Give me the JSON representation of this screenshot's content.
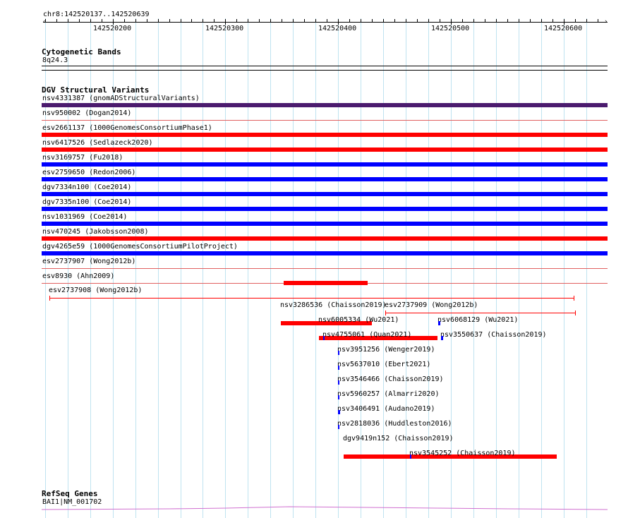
{
  "locus": "chr8:142520137..142520639",
  "region": {
    "start": 142520137,
    "end": 142520639
  },
  "ruler_ticks": [
    {
      "label": "142520200",
      "pos": 142520200
    },
    {
      "label": "142520300",
      "pos": 142520300
    },
    {
      "label": "142520400",
      "pos": 142520400
    },
    {
      "label": "142520500",
      "pos": 142520500
    },
    {
      "label": "142520600",
      "pos": 142520600
    }
  ],
  "colors": {
    "loss": "#ff0000",
    "gain": "#0000ff",
    "complex": "#4b1b6e",
    "thin_loss": "#e06060",
    "gene": "#d070d0",
    "grid": "#bfe3f0"
  },
  "tracks": {
    "cytoband": {
      "title": "Cytogenetic Bands",
      "band": "8q24.3"
    },
    "dgv": {
      "title": "DGV Structural Variants",
      "full_rows": [
        {
          "label": "nsv4331387 (gnomADStructuralVariants)",
          "color": "complex",
          "thick": true
        },
        {
          "label": "nsv950002 (Dogan2014)",
          "color": "thin_loss",
          "thick": false
        },
        {
          "label": "esv2661137 (1000GenomesConsortiumPhase1)",
          "color": "loss",
          "thick": true
        },
        {
          "label": "nsv6417526 (Sedlazeck2020)",
          "color": "loss",
          "thick": true
        },
        {
          "label": "nsv3169757 (Fu2018)",
          "color": "gain",
          "thick": true
        },
        {
          "label": "esv2759650 (Redon2006)",
          "color": "gain",
          "thick": true
        },
        {
          "label": "dgv7334n100 (Coe2014)",
          "color": "gain",
          "thick": true
        },
        {
          "label": "dgv7335n100 (Coe2014)",
          "color": "gain",
          "thick": true
        },
        {
          "label": "nsv1031969 (Coe2014)",
          "color": "gain",
          "thick": true
        },
        {
          "label": "nsv470245 (Jakobsson2008)",
          "color": "loss",
          "thick": true
        },
        {
          "label": "dgv4265e59 (1000GenomesConsortiumPilotProject)",
          "color": "gain",
          "thick": true
        },
        {
          "label": "esv2737907 (Wong2012b)",
          "color": "thin_loss",
          "thick": false
        },
        {
          "label": "esv8930 (Ahn2009)",
          "color": "thin_loss",
          "thick": false
        }
      ],
      "ahn_feature": {
        "start": 142520352,
        "end": 142520426
      },
      "partial_features": [
        {
          "label": "esv2737908 (Wong2012b)",
          "start": 142520144,
          "end": 142520609,
          "color": "loss",
          "style": "thin",
          "row": 0
        },
        {
          "label": "nsv3286536 (Chaisson2019)",
          "start": 142520349,
          "end": 142520430,
          "color": "loss",
          "style": "thick",
          "row": 1
        },
        {
          "label": "esv2737909 (Wong2012b)",
          "start": 142520442,
          "end": 142520610,
          "color": "loss",
          "style": "thin",
          "row": 1
        },
        {
          "label": "nsv6005334 (Wu2021)",
          "start": 142520383,
          "end": 142520488,
          "color": "loss",
          "style": "thick",
          "row": 2
        },
        {
          "label": "nsv6068129 (Wu2021)",
          "start": 142520489,
          "end": 142520491,
          "color": "gain",
          "style": "tick",
          "row": 2
        },
        {
          "label": "nsv4755061 (Quan2021)",
          "start": 142520387,
          "end": 142520388,
          "color": "gain",
          "style": "tick",
          "row": 3
        },
        {
          "label": "nsv3550637 (Chaisson2019)",
          "start": 142520491,
          "end": 142520493,
          "color": "gain",
          "style": "tick",
          "row": 3
        },
        {
          "label": "nsv3951256 (Wenger2019)",
          "start": 142520400,
          "end": 142520401,
          "color": "gain",
          "style": "tick",
          "row": 4
        },
        {
          "label": "nsv5637010 (Ebert2021)",
          "start": 142520400,
          "end": 142520401,
          "color": "gain",
          "style": "tick",
          "row": 5
        },
        {
          "label": "nsv3546466 (Chaisson2019)",
          "start": 142520400,
          "end": 142520401,
          "color": "gain",
          "style": "tick",
          "row": 6
        },
        {
          "label": "nsv5960257 (Almarri2020)",
          "start": 142520400,
          "end": 142520401,
          "color": "gain",
          "style": "tick",
          "row": 7
        },
        {
          "label": "nsv3406491 (Audano2019)",
          "start": 142520400,
          "end": 142520402,
          "color": "gain",
          "style": "tick",
          "row": 8
        },
        {
          "label": "nsv2818036 (Huddleston2016)",
          "start": 142520400,
          "end": 142520401,
          "color": "gain",
          "style": "tick",
          "row": 9
        },
        {
          "label": "dgv9419n152 (Chaisson2019)",
          "start": 142520405,
          "end": 142520594,
          "color": "loss",
          "style": "thick",
          "row": 10
        },
        {
          "label": "nsv3545252 (Chaisson2019)",
          "start": 142520464,
          "end": 142520465,
          "color": "gain",
          "style": "tick",
          "row": 11
        }
      ]
    },
    "refseq": {
      "title": "RefSeq Genes",
      "gene": "BAI1|NM_001702"
    }
  }
}
